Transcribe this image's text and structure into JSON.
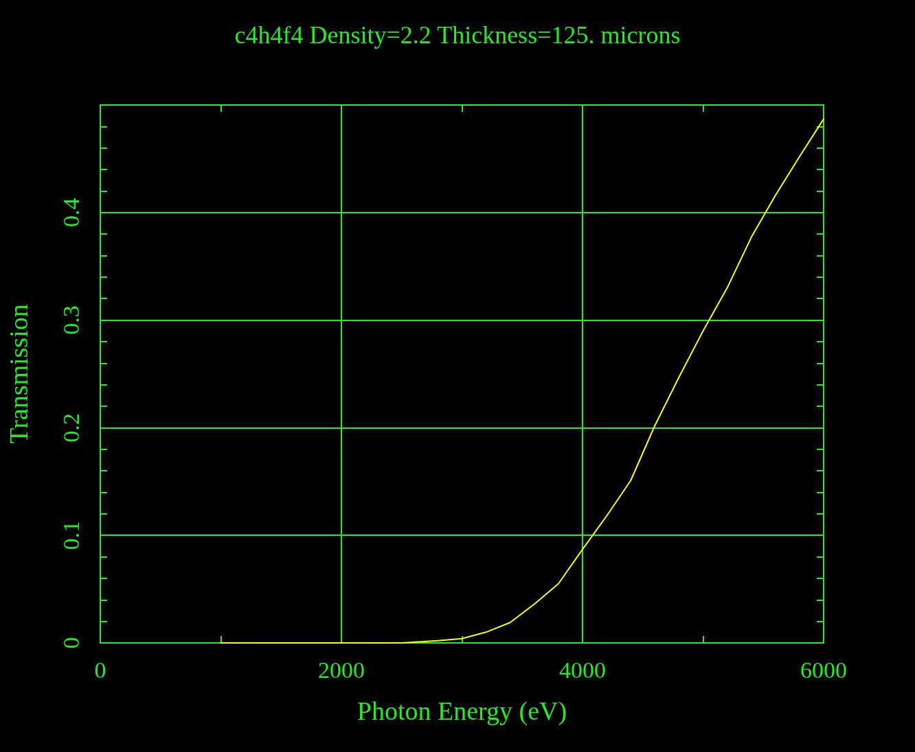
{
  "chart_data": {
    "type": "line",
    "title": "c4h4f4 Density=2.2 Thickness=125. microns",
    "xlabel": "Photon Energy (eV)",
    "ylabel": "Transmission",
    "x": [
      1000,
      1500,
      2000,
      2500,
      2800,
      3000,
      3200,
      3400,
      3600,
      3800,
      4000,
      4200,
      4400,
      4600,
      4800,
      5000,
      5200,
      5400,
      5600,
      5800,
      6000
    ],
    "series": [
      {
        "color": "#ffff00",
        "values": [
          0,
          0,
          0,
          0,
          0.002,
          0.004,
          0.01,
          0.019,
          0.036,
          0.055,
          0.087,
          0.118,
          0.151,
          0.202,
          0.247,
          0.29,
          0.33,
          0.377,
          0.416,
          0.452,
          0.487
        ]
      }
    ],
    "xlim": [
      0,
      6000
    ],
    "ylim": [
      0,
      0.5
    ],
    "xticks": [
      0,
      {
        "value": 1000,
        "label": null
      },
      2000,
      {
        "value": 3000,
        "label": null
      },
      4000,
      {
        "value": 5000,
        "label": null
      },
      6000
    ],
    "yticks": [
      0,
      {
        "value": 0.02,
        "label": null
      },
      {
        "value": 0.04,
        "label": null
      },
      {
        "value": 0.06,
        "label": null
      },
      {
        "value": 0.08,
        "label": null
      },
      0.1,
      {
        "value": 0.12,
        "label": null
      },
      {
        "value": 0.14,
        "label": null
      },
      {
        "value": 0.16,
        "label": null
      },
      {
        "value": 0.18,
        "label": null
      },
      0.2,
      {
        "value": 0.22,
        "label": null
      },
      {
        "value": 0.24,
        "label": null
      },
      {
        "value": 0.26,
        "label": null
      },
      {
        "value": 0.28,
        "label": null
      },
      0.3,
      {
        "value": 0.32,
        "label": null
      },
      {
        "value": 0.34,
        "label": null
      },
      {
        "value": 0.36,
        "label": null
      },
      {
        "value": 0.38,
        "label": null
      },
      0.4,
      {
        "value": 0.42,
        "label": null
      },
      {
        "value": 0.44,
        "label": null
      },
      {
        "value": 0.46,
        "label": null
      },
      {
        "value": 0.48,
        "label": null
      }
    ],
    "grid": true,
    "marker": "none",
    "line_style": "solid"
  }
}
